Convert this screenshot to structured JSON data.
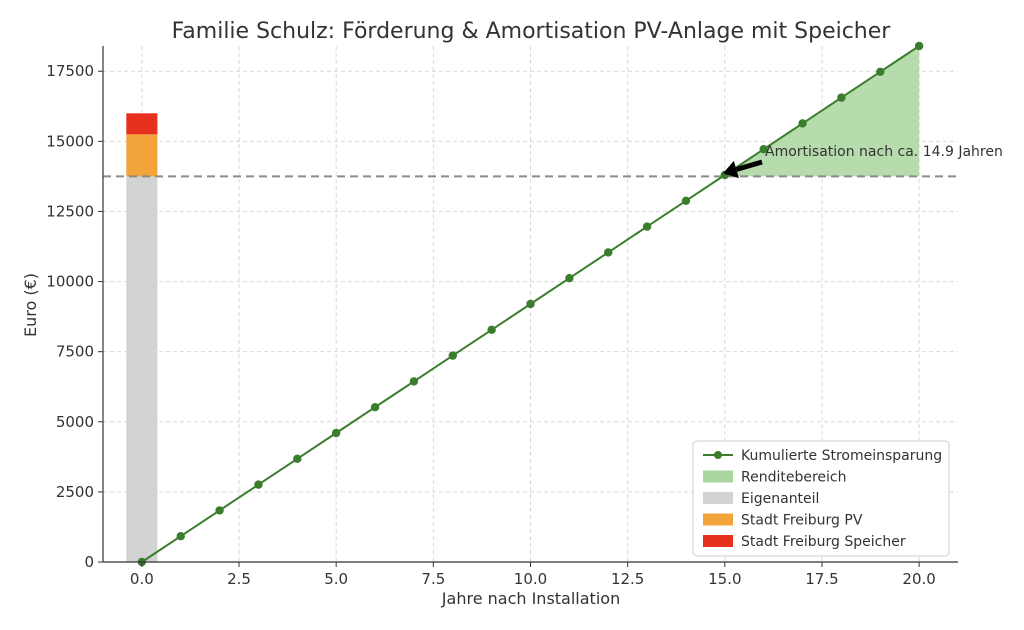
{
  "chart_data": {
    "type": "line",
    "title": "Familie Schulz: Förderung & Amortisation PV-Anlage mit Speicher",
    "xlabel": "Jahre nach Installation",
    "ylabel": "Euro (€)",
    "xlim": [
      -1.0,
      21.0
    ],
    "ylim": [
      0,
      18400
    ],
    "xticks": [
      0.0,
      2.5,
      5.0,
      7.5,
      10.0,
      12.5,
      15.0,
      17.5,
      20.0
    ],
    "xtick_labels": [
      "0.0",
      "2.5",
      "5.0",
      "7.5",
      "10.0",
      "12.5",
      "15.0",
      "17.5",
      "20.0"
    ],
    "yticks": [
      0,
      2500,
      5000,
      7500,
      10000,
      12500,
      15000,
      17500
    ],
    "ytick_labels": [
      "0",
      "2500",
      "5000",
      "7500",
      "10000",
      "12500",
      "15000",
      "17500"
    ],
    "grid": true,
    "legend_position": "bottom-right",
    "series": [
      {
        "name": "Kumulierte Stromeinsparung",
        "color": "#3a7d2c",
        "x": [
          0,
          1,
          2,
          3,
          4,
          5,
          6,
          7,
          8,
          9,
          10,
          11,
          12,
          13,
          14,
          15,
          16,
          17,
          18,
          19,
          20
        ],
        "y": [
          0,
          920,
          1840,
          2760,
          3680,
          4600,
          5520,
          6440,
          7360,
          8280,
          9200,
          10120,
          11040,
          11960,
          12880,
          13800,
          14720,
          15640,
          16560,
          17480,
          18400
        ]
      }
    ],
    "stacked_bar": {
      "x": 0,
      "width": 0.8,
      "segments": [
        {
          "name": "Eigenanteil",
          "value": 13750,
          "color": "#d3d3d3"
        },
        {
          "name": "Stadt Freiburg PV",
          "value": 1500,
          "color": "#f2a33a"
        },
        {
          "name": "Stadt Freiburg Speicher",
          "value": 750,
          "color": "#e8301e"
        }
      ]
    },
    "area": {
      "name": "Renditebereich",
      "x_from": 14.9,
      "x_to": 20,
      "baseline": 13750,
      "color": "#a9d59e"
    },
    "reference_line": {
      "y": 13750,
      "style": "dashed",
      "color": "#8a8a8a"
    },
    "annotation": {
      "text": "Amortisation nach ca. 14.9 Jahren",
      "x": 14.9,
      "y": 13750
    },
    "legend": [
      {
        "label": "Kumulierte Stromeinsparung",
        "kind": "line",
        "color": "#3a7d2c"
      },
      {
        "label": "Renditebereich",
        "kind": "patch",
        "color": "#a9d59e"
      },
      {
        "label": "Eigenanteil",
        "kind": "patch",
        "color": "#d3d3d3"
      },
      {
        "label": "Stadt Freiburg PV",
        "kind": "patch",
        "color": "#f2a33a"
      },
      {
        "label": "Stadt Freiburg Speicher",
        "kind": "patch",
        "color": "#e8301e"
      }
    ]
  }
}
